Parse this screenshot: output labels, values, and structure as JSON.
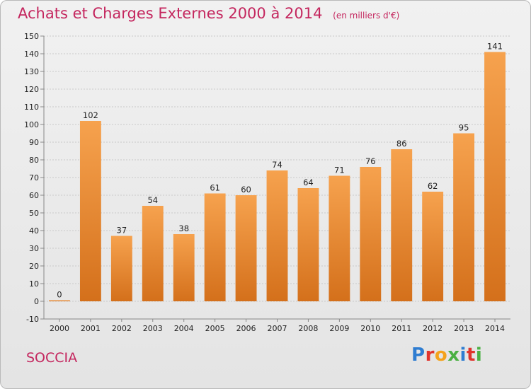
{
  "page": {
    "commune": "SOCCIA",
    "logo": {
      "letters": [
        "P",
        "r",
        "o",
        "x",
        "i",
        "t",
        "i"
      ],
      "colors": [
        "#2f7dd1",
        "#e0332c",
        "#f4a21c",
        "#4bb043",
        "#2f7dd1",
        "#e0332c",
        "#4bb043"
      ]
    }
  },
  "chart_data": {
    "type": "bar",
    "title": "Achats et Charges Externes 2000 à 2014",
    "subtitle": "(en milliers d'€)",
    "categories": [
      "2000",
      "2001",
      "2002",
      "2003",
      "2004",
      "2005",
      "2006",
      "2007",
      "2008",
      "2009",
      "2010",
      "2011",
      "2012",
      "2013",
      "2014"
    ],
    "values": [
      0,
      102,
      37,
      54,
      38,
      61,
      60,
      74,
      64,
      71,
      76,
      86,
      62,
      95,
      141
    ],
    "ylim": [
      -10,
      150
    ],
    "yticks": [
      -10,
      0,
      10,
      20,
      30,
      40,
      50,
      60,
      70,
      80,
      90,
      100,
      110,
      120,
      130,
      140,
      150
    ],
    "grid": true,
    "colors": {
      "bar_top": "#f6a24e",
      "bar_bottom": "#d4701b",
      "title": "#c4265e"
    }
  }
}
